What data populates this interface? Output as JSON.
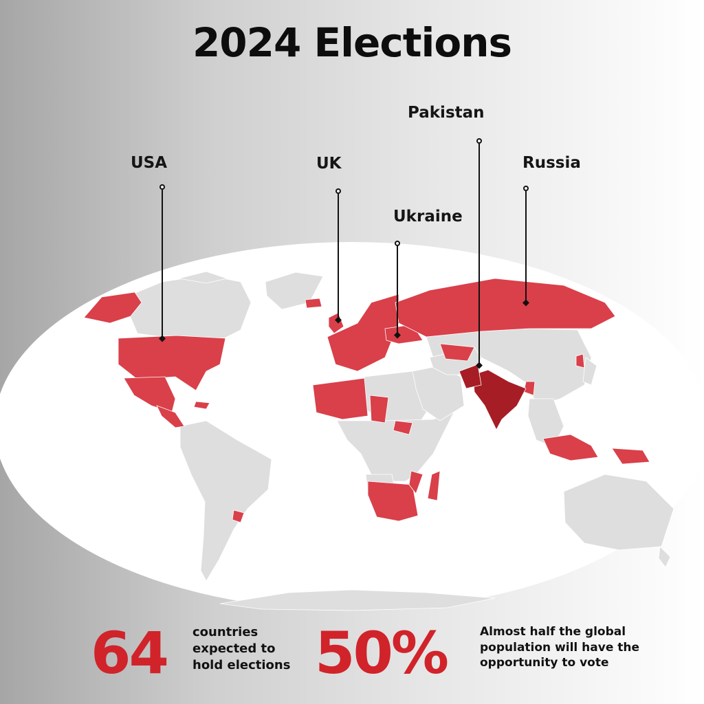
{
  "title": "2024 Elections",
  "colors": {
    "election": "#d9404a",
    "highlight": "#a71d25",
    "land": "#dedede",
    "ocean": "#ffffff",
    "accent": "#d1232a"
  },
  "map": {
    "callouts": [
      {
        "name": "USA"
      },
      {
        "name": "UK"
      },
      {
        "name": "Ukraine"
      },
      {
        "name": "Pakistan"
      },
      {
        "name": "Russia"
      }
    ]
  },
  "stats": [
    {
      "value": "64",
      "lines": [
        "countries",
        "expected to",
        "hold elections"
      ]
    },
    {
      "value": "50%",
      "lines": [
        "Almost half the global",
        "population will have the",
        "opportunity to vote"
      ]
    }
  ]
}
